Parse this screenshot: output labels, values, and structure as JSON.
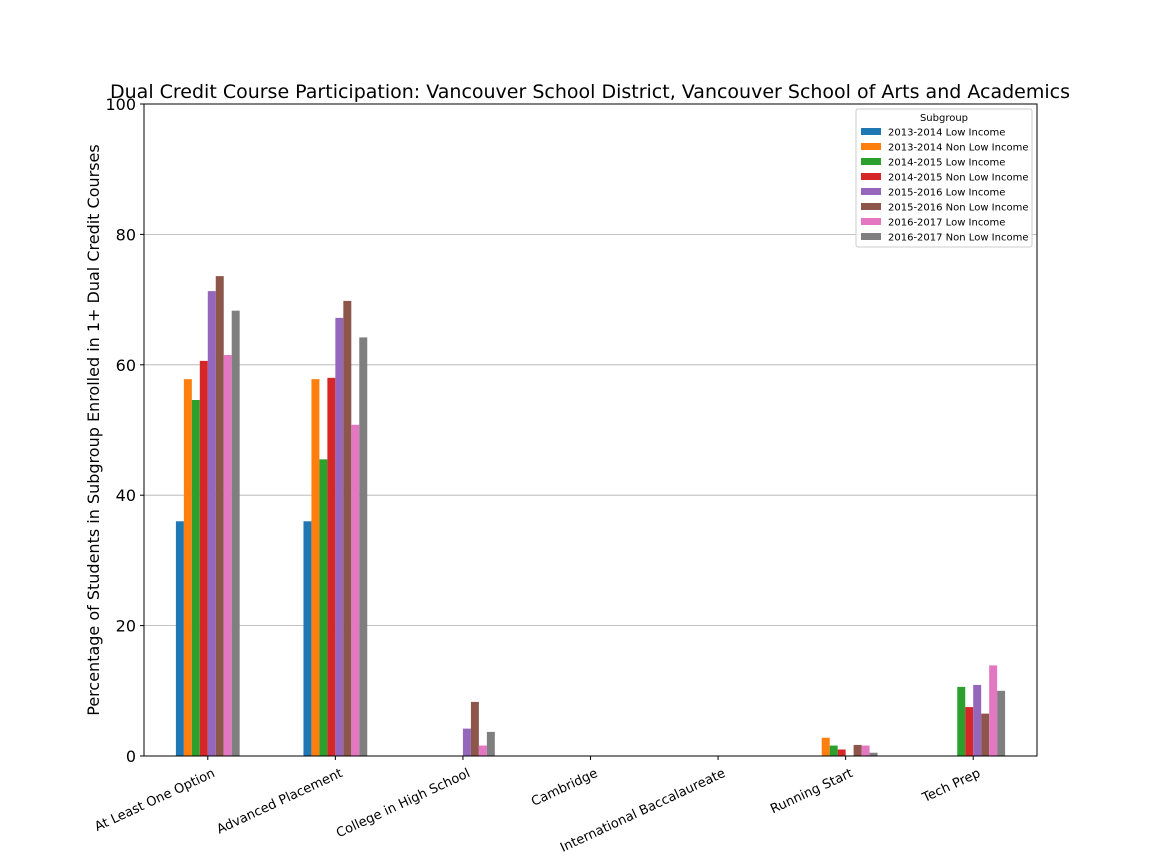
{
  "chart_data": {
    "type": "bar",
    "title": "Dual Credit Course Participation: Vancouver School District, Vancouver School of Arts and Academics",
    "xlabel": "",
    "ylabel": "Percentage of Students in Subgroup Enrolled in 1+ Dual Credit Courses",
    "ylim": [
      0,
      100
    ],
    "yticks": [
      0,
      20,
      40,
      60,
      80,
      100
    ],
    "grid": "horizontal",
    "legend_title": "Subgroup",
    "legend_position": "top-right",
    "categories": [
      "At Least One Option",
      "Advanced Placement",
      "College in High School",
      "Cambridge",
      "International Baccalaureate",
      "Running Start",
      "Tech Prep"
    ],
    "series": [
      {
        "name": "2013-2014 Low Income",
        "color": "#1f77b4",
        "values": [
          36.0,
          36.0,
          0,
          0,
          0,
          0,
          0
        ]
      },
      {
        "name": "2013-2014 Non Low Income",
        "color": "#ff7f0e",
        "values": [
          57.8,
          57.8,
          0,
          0,
          0,
          2.8,
          0
        ]
      },
      {
        "name": "2014-2015 Low Income",
        "color": "#2ca02c",
        "values": [
          54.6,
          45.5,
          0,
          0,
          0,
          1.6,
          10.6
        ]
      },
      {
        "name": "2014-2015 Non Low Income",
        "color": "#d62728",
        "values": [
          60.6,
          58.0,
          0,
          0,
          0,
          1.0,
          7.5
        ]
      },
      {
        "name": "2015-2016 Low Income",
        "color": "#9467bd",
        "values": [
          71.3,
          67.2,
          4.2,
          0,
          0,
          0,
          10.9
        ]
      },
      {
        "name": "2015-2016 Non Low Income",
        "color": "#8c564b",
        "values": [
          73.6,
          69.8,
          8.3,
          0,
          0,
          1.7,
          6.5
        ]
      },
      {
        "name": "2016-2017 Low Income",
        "color": "#e377c2",
        "values": [
          61.5,
          50.8,
          1.6,
          0,
          0,
          1.6,
          13.9
        ]
      },
      {
        "name": "2016-2017 Non Low Income",
        "color": "#7f7f7f",
        "values": [
          68.3,
          64.2,
          3.7,
          0,
          0,
          0.5,
          10.0
        ]
      }
    ]
  }
}
